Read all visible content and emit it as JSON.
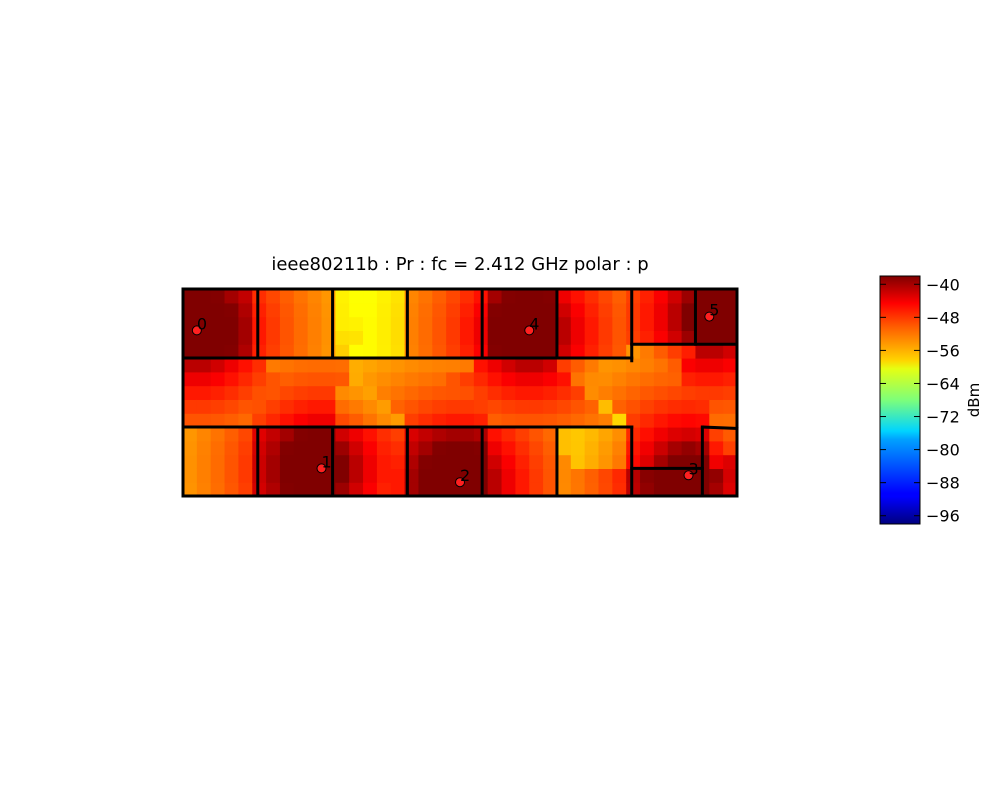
{
  "chart_data": {
    "type": "heatmap",
    "title": "ieee80211b : Pr :  fc = 2.412 GHz polar : p",
    "colorbar": {
      "label": "dBm",
      "range": [
        -98,
        -38
      ],
      "ticks": [
        -40,
        -48,
        -56,
        -64,
        -72,
        -80,
        -88,
        -96
      ],
      "tick_labels": [
        "−40",
        "−48",
        "−56",
        "−64",
        "−72",
        "−80",
        "−88",
        "−96"
      ],
      "colormap": "jet"
    },
    "extent": {
      "x": [
        0,
        40
      ],
      "y": [
        0,
        15
      ]
    },
    "grid": false,
    "access_points": [
      {
        "label": "0",
        "x": 1.0,
        "y": 12.0,
        "color": "#ff2020"
      },
      {
        "label": "1",
        "x": 10.0,
        "y": 2.0,
        "color": "#ff2020"
      },
      {
        "label": "2",
        "x": 20.0,
        "y": 1.0,
        "color": "#ff2020"
      },
      {
        "label": "3",
        "x": 36.5,
        "y": 1.5,
        "color": "#ff2020"
      },
      {
        "label": "4",
        "x": 25.0,
        "y": 12.0,
        "color": "#ff2020"
      },
      {
        "label": "5",
        "x": 38.0,
        "y": 13.0,
        "color": "#ff2020"
      }
    ],
    "walls": [
      [
        [
          0,
          0
        ],
        [
          40,
          0
        ]
      ],
      [
        [
          0,
          15
        ],
        [
          40,
          15
        ]
      ],
      [
        [
          0,
          0
        ],
        [
          0,
          15
        ]
      ],
      [
        [
          40,
          0
        ],
        [
          40,
          15
        ]
      ],
      [
        [
          0,
          10
        ],
        [
          32.4,
          10
        ]
      ],
      [
        [
          0,
          5
        ],
        [
          32.4,
          5
        ]
      ],
      [
        [
          5.4,
          10
        ],
        [
          5.4,
          15
        ]
      ],
      [
        [
          10.8,
          10
        ],
        [
          10.8,
          15
        ]
      ],
      [
        [
          16.2,
          10
        ],
        [
          16.2,
          15
        ]
      ],
      [
        [
          21.6,
          10
        ],
        [
          21.6,
          15
        ]
      ],
      [
        [
          27,
          10
        ],
        [
          27,
          15
        ]
      ],
      [
        [
          32.4,
          9.8
        ],
        [
          32.4,
          15
        ]
      ],
      [
        [
          32.4,
          11
        ],
        [
          40,
          11
        ]
      ],
      [
        [
          37,
          11
        ],
        [
          37,
          15
        ]
      ],
      [
        [
          5.4,
          0
        ],
        [
          5.4,
          5
        ]
      ],
      [
        [
          10.8,
          0
        ],
        [
          10.8,
          5
        ]
      ],
      [
        [
          16.2,
          0
        ],
        [
          16.2,
          5
        ]
      ],
      [
        [
          21.6,
          0
        ],
        [
          21.6,
          5
        ]
      ],
      [
        [
          27,
          0
        ],
        [
          27,
          5
        ]
      ],
      [
        [
          32.4,
          0
        ],
        [
          32.4,
          5
        ]
      ],
      [
        [
          32.4,
          2
        ],
        [
          37.5,
          2
        ]
      ],
      [
        [
          37.5,
          0
        ],
        [
          37.5,
          5
        ]
      ],
      [
        [
          37.5,
          5
        ],
        [
          40,
          4.9
        ]
      ]
    ]
  }
}
